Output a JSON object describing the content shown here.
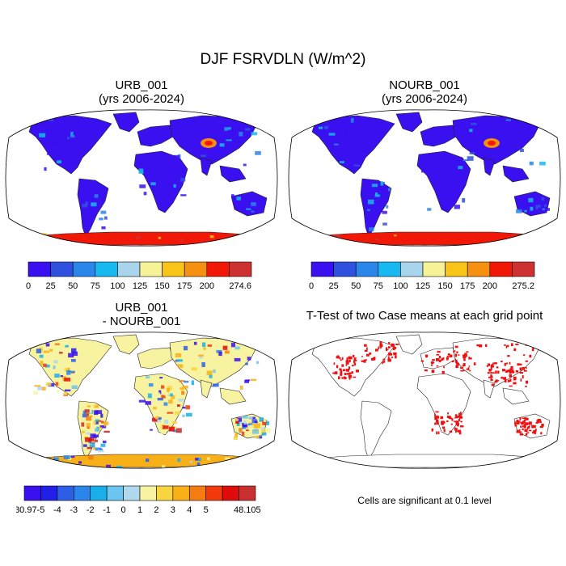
{
  "figure": {
    "title": "DJF FSRVDLN (W/m^2)",
    "panels": [
      {
        "id": "urb",
        "title_line1": "URB_001",
        "title_line2": "(yrs 2006-2024)"
      },
      {
        "id": "nourb",
        "title_line1": "NOURB_001",
        "title_line2": "(yrs 2006-2024)"
      },
      {
        "id": "diff",
        "title_line1": "URB_001",
        "title_line2": "- NOURB_001"
      },
      {
        "id": "ttest",
        "title_line1": "T-Test of two Case means at each grid point"
      }
    ],
    "significance_note": "Cells are significant at 0.1 level"
  },
  "colorbars": [
    {
      "id": "cbar-urb",
      "labels": [
        "0",
        "25",
        "50",
        "75",
        "100",
        "125",
        "150",
        "175",
        "200",
        "274.6"
      ],
      "colors": [
        "#3a0ff0",
        "#3050e0",
        "#2a86ea",
        "#18b8f0",
        "#a8d4ec",
        "#f6f298",
        "#f8c418",
        "#f59010",
        "#f21808",
        "#cf3030"
      ]
    },
    {
      "id": "cbar-nourb",
      "labels": [
        "0",
        "25",
        "50",
        "75",
        "100",
        "125",
        "150",
        "175",
        "200",
        "275.2"
      ],
      "colors": [
        "#3a0ff0",
        "#3050e0",
        "#2a86ea",
        "#18b8f0",
        "#a8d4ec",
        "#f6f298",
        "#f8c418",
        "#f59010",
        "#f21808",
        "#cf3030"
      ]
    },
    {
      "id": "cbar-diff",
      "labels": [
        "-30.97",
        "-5",
        "-4",
        "-3",
        "-2",
        "-1",
        "0",
        "1",
        "2",
        "3",
        "4",
        "5",
        "48.105"
      ],
      "colors": [
        "#3a0ff0",
        "#2020e8",
        "#2c5ee6",
        "#2a86ea",
        "#1aaeea",
        "#6ac6ee",
        "#b0d8ee",
        "#f7f3a0",
        "#f8d440",
        "#f8b018",
        "#f57c10",
        "#f23a0c",
        "#e00c0c",
        "#c83030"
      ]
    }
  ],
  "map_palette": {
    "ocean": "#ffffff",
    "coast": "#222222",
    "sig": "#f01010"
  }
}
